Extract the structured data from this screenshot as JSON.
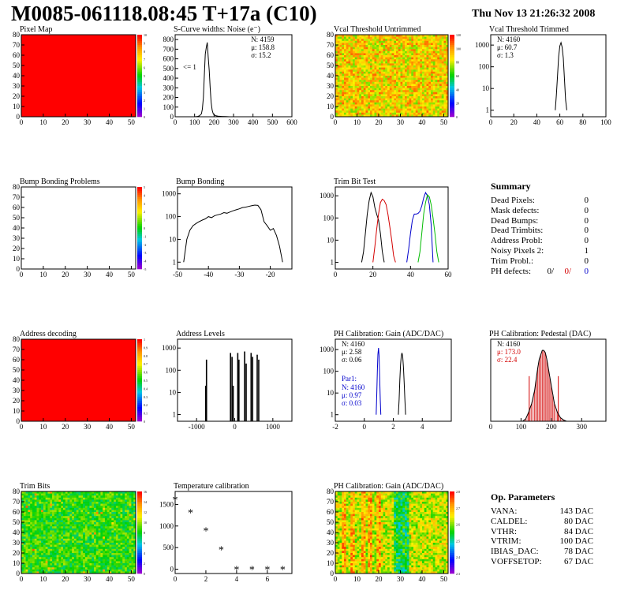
{
  "page": {
    "title": "M0085-061118.08:45 T+17a (C10)",
    "date": "Thu Nov 13 21:26:32 2008"
  },
  "summary": {
    "title": "Summary",
    "rows": [
      {
        "label": "Dead Pixels:",
        "value": "0"
      },
      {
        "label": "Mask defects:",
        "value": "0"
      },
      {
        "label": "Dead Bumps:",
        "value": "0"
      },
      {
        "label": "Dead Trimbits:",
        "value": "0"
      },
      {
        "label": "Address Probl:",
        "value": "0"
      },
      {
        "label": "Noisy Pixels 2:",
        "value": "1"
      },
      {
        "label": "Trim Probl.:",
        "value": "0"
      }
    ],
    "ph_row": {
      "label": "PH defects:",
      "v1": "0/",
      "v2": "0/",
      "v3": "0"
    }
  },
  "op_params": {
    "title": "Op. Parameters",
    "rows": [
      {
        "label": "VANA:",
        "value": "143 DAC"
      },
      {
        "label": "CALDEL:",
        "value": "80 DAC"
      },
      {
        "label": "VTHR:",
        "value": "84 DAC"
      },
      {
        "label": "VTRIM:",
        "value": "100 DAC"
      },
      {
        "label": "IBIAS_DAC:",
        "value": "78 DAC"
      },
      {
        "label": "VOFFSETOP:",
        "value": "67 DAC"
      }
    ]
  },
  "chart_data": [
    {
      "id": "pixel-map",
      "type": "heatmap",
      "title": "Pixel Map",
      "fill": "uniform-red",
      "xlim": [
        0,
        52
      ],
      "ylim": [
        0,
        80
      ],
      "xticks": [
        0,
        10,
        20,
        30,
        40,
        50
      ],
      "yticks": [
        0,
        10,
        20,
        30,
        40,
        50,
        60,
        70,
        80
      ],
      "zticks": [
        0,
        1,
        2,
        3,
        4,
        5,
        6,
        7,
        8,
        9,
        10
      ]
    },
    {
      "id": "scurve-noise",
      "type": "line",
      "title": "S-Curve widths: Noise (e⁻)",
      "xlim": [
        0,
        600
      ],
      "ylim": [
        0,
        850
      ],
      "xticks": [
        0,
        100,
        200,
        300,
        400,
        500,
        600
      ],
      "yticks": [
        0,
        100,
        200,
        300,
        400,
        500,
        600,
        700,
        800
      ],
      "stats": [
        "N: 4159",
        "μ: 158.8",
        "σ: 15.2"
      ],
      "annotation": "<= 1",
      "x": [
        100,
        115,
        125,
        135,
        140,
        145,
        150,
        155,
        160,
        165,
        170,
        175,
        180,
        185,
        190,
        195,
        200,
        210,
        220,
        240,
        260,
        280
      ],
      "y": [
        0,
        3,
        10,
        30,
        80,
        200,
        430,
        650,
        720,
        770,
        620,
        480,
        300,
        150,
        70,
        35,
        20,
        10,
        6,
        3,
        2,
        0
      ]
    },
    {
      "id": "vcal-untrimmed",
      "type": "heatmap",
      "title": "Vcal Threshold Untrimmed",
      "fill": "noise-orange",
      "xlim": [
        0,
        52
      ],
      "ylim": [
        0,
        80
      ],
      "xticks": [
        0,
        10,
        20,
        30,
        40,
        50
      ],
      "yticks": [
        0,
        10,
        20,
        30,
        40,
        50,
        60,
        70,
        80
      ],
      "zticks": [
        0,
        20,
        40,
        60,
        80,
        100,
        120
      ]
    },
    {
      "id": "vcal-trimmed",
      "type": "line",
      "title": "Vcal Threshold Trimmed",
      "yscale": "log",
      "xlim": [
        0,
        100
      ],
      "ylim": [
        0.5,
        3000
      ],
      "xticks": [
        0,
        20,
        40,
        60,
        80,
        100
      ],
      "yticks": [
        1,
        10,
        100,
        1000
      ],
      "stats": [
        "N: 4160",
        "μ: 60.7",
        "σ:  1.3"
      ],
      "x": [
        56,
        57,
        58,
        59,
        60,
        61,
        62,
        63,
        64,
        65,
        66
      ],
      "y": [
        1,
        5,
        40,
        300,
        900,
        1300,
        800,
        250,
        30,
        3,
        1
      ]
    },
    {
      "id": "bump-bonding-problems",
      "type": "heatmap",
      "title": "Bump Bonding Problems",
      "fill": "empty",
      "xlim": [
        0,
        52
      ],
      "ylim": [
        0,
        80
      ],
      "xticks": [
        0,
        10,
        20,
        30,
        40,
        50
      ],
      "yticks": [
        0,
        10,
        20,
        30,
        40,
        50,
        60,
        70,
        80
      ],
      "zticks": [
        -5,
        -4,
        -3,
        -2,
        -1,
        0,
        1,
        2,
        3,
        4,
        5
      ]
    },
    {
      "id": "bump-bonding",
      "type": "line",
      "title": "Bump Bonding",
      "yscale": "log",
      "xlim": [
        -50,
        -13
      ],
      "ylim": [
        0.5,
        2000
      ],
      "xticks": [
        -50,
        -40,
        -30,
        -20
      ],
      "yticks": [
        1,
        10,
        100,
        1000
      ],
      "x": [
        -48,
        -47,
        -46,
        -45,
        -44,
        -43,
        -42,
        -41,
        -40,
        -39,
        -38,
        -37,
        -36,
        -35,
        -34,
        -33,
        -32,
        -31,
        -30,
        -29,
        -28,
        -27,
        -26,
        -25,
        -24,
        -23,
        -22,
        -21,
        -20,
        -19,
        -18,
        -17,
        -16
      ],
      "y": [
        1,
        10,
        25,
        40,
        50,
        60,
        70,
        80,
        100,
        90,
        110,
        120,
        130,
        150,
        140,
        160,
        180,
        200,
        220,
        250,
        260,
        280,
        300,
        320,
        310,
        200,
        60,
        40,
        25,
        30,
        15,
        5,
        1
      ]
    },
    {
      "id": "trim-bit-test",
      "type": "line",
      "title": "Trim Bit Test",
      "yscale": "log",
      "xlim": [
        0,
        60
      ],
      "ylim": [
        0.5,
        2500
      ],
      "xticks": [
        0,
        20,
        40,
        60
      ],
      "yticks": [
        1,
        10,
        100,
        1000
      ],
      "series": [
        {
          "color": "#000000",
          "x": [
            14,
            15,
            16,
            17,
            18,
            19,
            20,
            21,
            22,
            23,
            24,
            25,
            26
          ],
          "y": [
            1,
            3,
            20,
            150,
            600,
            1400,
            900,
            300,
            150,
            80,
            20,
            3,
            1
          ]
        },
        {
          "color": "#d40000",
          "x": [
            20,
            21,
            22,
            23,
            24,
            25,
            26,
            27,
            28,
            29,
            30,
            31,
            32
          ],
          "y": [
            1,
            5,
            30,
            150,
            500,
            700,
            600,
            400,
            150,
            40,
            10,
            2,
            1
          ]
        },
        {
          "color": "#0000cc",
          "x": [
            38,
            39,
            40,
            41,
            42,
            43,
            44,
            45,
            46,
            47,
            48,
            49,
            50,
            51,
            52
          ],
          "y": [
            1,
            4,
            20,
            80,
            150,
            150,
            160,
            200,
            350,
            800,
            1400,
            1000,
            400,
            50,
            1
          ]
        },
        {
          "color": "#00bb00",
          "x": [
            44,
            45,
            46,
            47,
            48,
            49,
            50,
            51,
            52,
            53,
            54,
            55
          ],
          "y": [
            1,
            3,
            20,
            150,
            500,
            1100,
            900,
            400,
            100,
            20,
            3,
            1
          ]
        }
      ]
    },
    {
      "id": "address-decoding",
      "type": "heatmap",
      "title": "Address decoding",
      "fill": "uniform-red",
      "xlim": [
        0,
        52
      ],
      "ylim": [
        0,
        80
      ],
      "xticks": [
        0,
        10,
        20,
        30,
        40,
        50
      ],
      "yticks": [
        0,
        10,
        20,
        30,
        40,
        50,
        60,
        70,
        80
      ],
      "zticks": [
        0,
        0.1,
        0.2,
        0.3,
        0.4,
        0.5,
        0.6,
        0.7,
        0.8,
        0.9,
        1
      ]
    },
    {
      "id": "address-levels",
      "type": "line",
      "title": "Address Levels",
      "yscale": "log",
      "xlim": [
        -1500,
        1500
      ],
      "ylim": [
        0.5,
        2500
      ],
      "xticks": [
        -1000,
        0,
        1000
      ],
      "yticks": [
        1,
        10,
        100,
        1000
      ],
      "spikes": [
        {
          "x": -760,
          "y": 20
        },
        {
          "x": -740,
          "y": 300
        },
        {
          "x": -110,
          "y": 600
        },
        {
          "x": -70,
          "y": 400
        },
        {
          "x": -40,
          "y": 20
        },
        {
          "x": 80,
          "y": 600
        },
        {
          "x": 110,
          "y": 300
        },
        {
          "x": 260,
          "y": 700
        },
        {
          "x": 300,
          "y": 200
        },
        {
          "x": 430,
          "y": 600
        },
        {
          "x": 470,
          "y": 400
        },
        {
          "x": 590,
          "y": 500
        },
        {
          "x": 630,
          "y": 300
        }
      ]
    },
    {
      "id": "ph-gain",
      "type": "line",
      "title": "PH Calibration: Gain (ADC/DAC)",
      "yscale": "log",
      "xlim": [
        -2,
        6
      ],
      "ylim": [
        0.5,
        3000
      ],
      "xticks": [
        -2,
        0,
        2,
        4
      ],
      "yticks": [
        1,
        10,
        100,
        1000
      ],
      "stats": [
        "N: 4160",
        "μ: 2.58",
        "σ: 0.06"
      ],
      "stats2_title": "Par1:",
      "stats2": [
        "N: 4160",
        "μ: 0.97",
        "σ: 0.03"
      ],
      "series": [
        {
          "color": "#000000",
          "x": [
            2.35,
            2.4,
            2.45,
            2.5,
            2.55,
            2.6,
            2.65,
            2.7,
            2.75,
            2.8,
            2.85
          ],
          "y": [
            1,
            5,
            40,
            200,
            500,
            700,
            500,
            150,
            30,
            5,
            1
          ]
        },
        {
          "color": "#0000cc",
          "x": [
            0.82,
            0.86,
            0.9,
            0.94,
            0.98,
            1.02,
            1.06,
            1.1,
            1.14
          ],
          "y": [
            1,
            10,
            100,
            600,
            1200,
            500,
            60,
            5,
            1
          ]
        }
      ]
    },
    {
      "id": "ph-pedestal",
      "type": "line",
      "title": "PH Calibration: Pedestal (DAC)",
      "xlim": [
        0,
        380
      ],
      "ylim": [
        0,
        185
      ],
      "xticks": [
        0,
        100,
        200,
        300
      ],
      "stats": [
        "N: 4160",
        "μ: 173.0",
        "σ: 22.4"
      ],
      "x": [
        105,
        115,
        125,
        135,
        145,
        150,
        155,
        160,
        165,
        170,
        175,
        180,
        185,
        190,
        195,
        200,
        205,
        210,
        220,
        230,
        240,
        250
      ],
      "y": [
        0,
        5,
        20,
        40,
        70,
        95,
        120,
        140,
        150,
        160,
        160,
        155,
        140,
        120,
        100,
        80,
        60,
        40,
        20,
        8,
        3,
        0
      ],
      "markers": [
        127,
        223
      ]
    },
    {
      "id": "trim-bits",
      "type": "heatmap",
      "title": "Trim Bits",
      "fill": "noise-green",
      "xlim": [
        0,
        52
      ],
      "ylim": [
        0,
        80
      ],
      "xticks": [
        0,
        10,
        20,
        30,
        40,
        50
      ],
      "yticks": [
        0,
        10,
        20,
        30,
        40,
        50,
        60,
        70,
        80
      ],
      "zticks": [
        0,
        2,
        4,
        6,
        8,
        10,
        12,
        14,
        16
      ]
    },
    {
      "id": "temperature-calibration",
      "type": "scatter",
      "title": "Temperature calibration",
      "xlim": [
        0,
        7.6
      ],
      "ylim": [
        -100,
        1800
      ],
      "xticks": [
        0,
        2,
        4,
        6
      ],
      "yticks": [
        0,
        500,
        1000,
        1500
      ],
      "x": [
        0,
        1,
        2,
        3,
        4,
        5,
        6,
        7
      ],
      "y": [
        1620,
        1320,
        900,
        460,
        0,
        0,
        0,
        0
      ]
    },
    {
      "id": "ph-gain-map",
      "type": "heatmap",
      "title": "PH Calibration: Gain (ADC/DAC)",
      "fill": "gain-map",
      "xlim": [
        0,
        52
      ],
      "ylim": [
        0,
        80
      ],
      "xticks": [
        0,
        10,
        20,
        30,
        40,
        50
      ],
      "yticks": [
        0,
        10,
        20,
        30,
        40,
        50,
        60,
        70,
        80
      ],
      "zticks": [
        2.3,
        2.4,
        2.5,
        2.6,
        2.7,
        2.8
      ]
    }
  ]
}
